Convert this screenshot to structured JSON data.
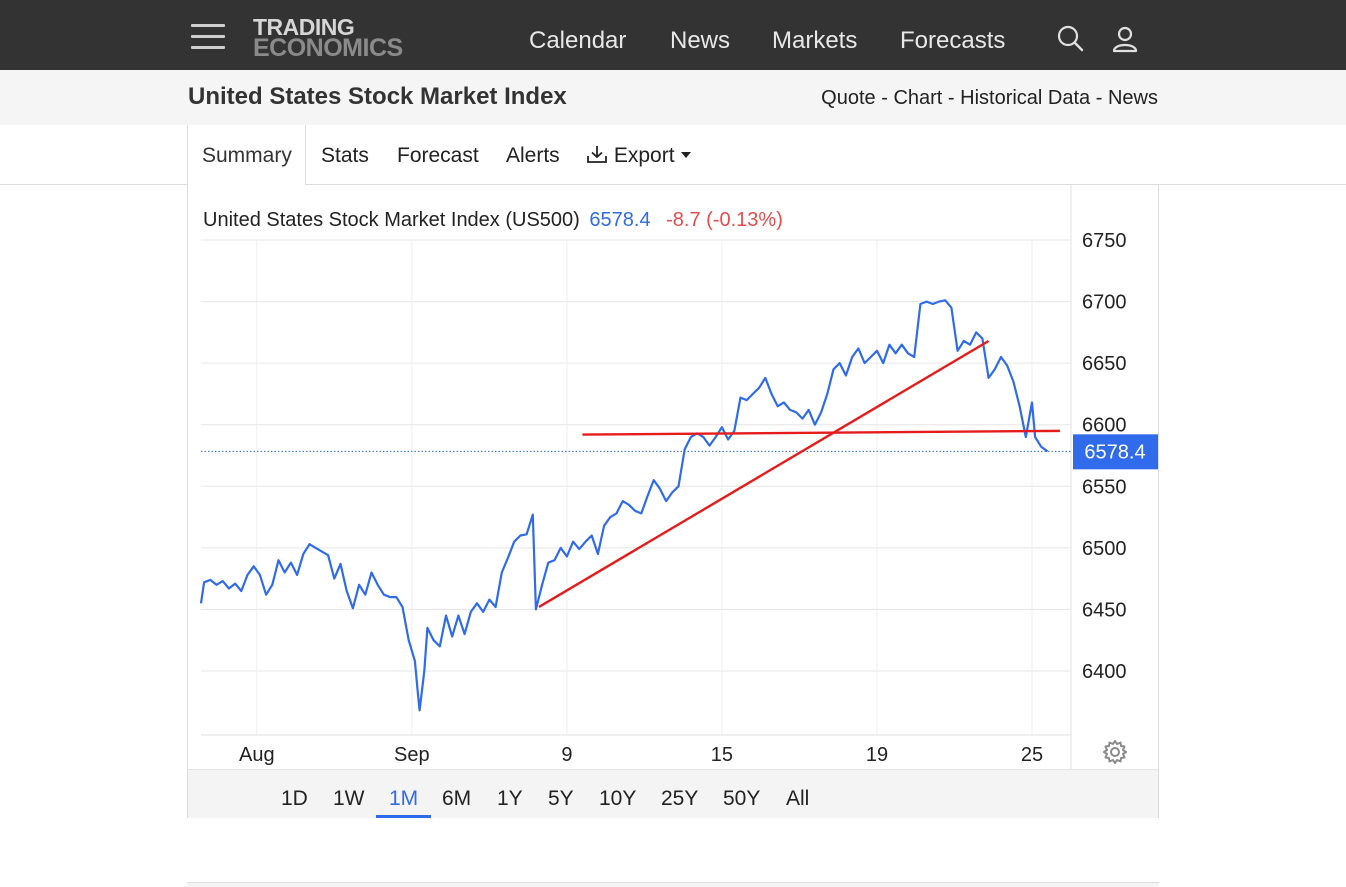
{
  "nav": {
    "logo_line1": "TRADING",
    "logo_line2": "ECONOMICS",
    "links": [
      "Calendar",
      "News",
      "Markets",
      "Forecasts"
    ],
    "search_icon": "search-icon",
    "user_icon": "user-icon",
    "menu_icon": "hamburger-menu-icon"
  },
  "title": "United States Stock Market Index",
  "breadcrumbs": {
    "quote": "Quote",
    "chart": "Chart",
    "historical": "Historical Data",
    "news": "News",
    "sep": "-"
  },
  "tabs": {
    "summary": "Summary",
    "stats": "Stats",
    "forecast": "Forecast",
    "alerts": "Alerts",
    "export": "Export"
  },
  "chart_header": {
    "name": "United States Stock Market Index (US500)",
    "price": "6578.4",
    "change": "-8.7 (-0.13%)"
  },
  "ranges": [
    "1D",
    "1W",
    "1M",
    "6M",
    "1Y",
    "5Y",
    "10Y",
    "25Y",
    "50Y",
    "All"
  ],
  "active_range": "1M",
  "colors": {
    "line": "#2f6bea",
    "trendline": "#e51c1c",
    "price_tag": "#2f6bea",
    "change": "#e74c4c",
    "nav_bg": "#333333"
  },
  "chart_data": {
    "type": "line",
    "title": "United States Stock Market Index (US500)",
    "ylim": [
      6350,
      6750
    ],
    "yticks": [
      6400,
      6450,
      6500,
      6550,
      6600,
      6650,
      6700,
      6750
    ],
    "xticks": [
      {
        "label": "Aug",
        "pos": 2.5
      },
      {
        "label": "Sep",
        "pos": 7.5
      },
      {
        "label": "9",
        "pos": 12.5
      },
      {
        "label": "15",
        "pos": 17.5
      },
      {
        "label": "19",
        "pos": 22.5
      },
      {
        "label": "25",
        "pos": 27.5
      }
    ],
    "xlim": [
      0.7,
      28.5
    ],
    "last_value": 6578.4,
    "last_label": "6578.4",
    "grid": true,
    "series": [
      {
        "values": [
          [
            0.7,
            6455
          ],
          [
            0.8,
            6472
          ],
          [
            1.0,
            6474
          ],
          [
            1.2,
            6470
          ],
          [
            1.4,
            6473
          ],
          [
            1.6,
            6467
          ],
          [
            1.8,
            6471
          ],
          [
            2.0,
            6465
          ],
          [
            2.2,
            6478
          ],
          [
            2.4,
            6485
          ],
          [
            2.6,
            6478
          ],
          [
            2.8,
            6462
          ],
          [
            3.0,
            6470
          ],
          [
            3.2,
            6490
          ],
          [
            3.4,
            6480
          ],
          [
            3.6,
            6488
          ],
          [
            3.8,
            6478
          ],
          [
            4.0,
            6495
          ],
          [
            4.2,
            6503
          ],
          [
            4.4,
            6500
          ],
          [
            4.6,
            6497
          ],
          [
            4.8,
            6494
          ],
          [
            5.0,
            6475
          ],
          [
            5.2,
            6487
          ],
          [
            5.4,
            6465
          ],
          [
            5.6,
            6451
          ],
          [
            5.8,
            6470
          ],
          [
            6.0,
            6462
          ],
          [
            6.2,
            6480
          ],
          [
            6.4,
            6470
          ],
          [
            6.6,
            6462
          ],
          [
            6.8,
            6460
          ],
          [
            7.0,
            6460
          ],
          [
            7.2,
            6452
          ],
          [
            7.4,
            6425
          ],
          [
            7.6,
            6408
          ],
          [
            7.7,
            6380
          ],
          [
            7.75,
            6368
          ],
          [
            7.9,
            6400
          ],
          [
            8.0,
            6435
          ],
          [
            8.2,
            6425
          ],
          [
            8.4,
            6420
          ],
          [
            8.6,
            6445
          ],
          [
            8.8,
            6428
          ],
          [
            9.0,
            6445
          ],
          [
            9.2,
            6430
          ],
          [
            9.4,
            6448
          ],
          [
            9.6,
            6455
          ],
          [
            9.8,
            6448
          ],
          [
            10.0,
            6458
          ],
          [
            10.2,
            6452
          ],
          [
            10.4,
            6480
          ],
          [
            10.6,
            6492
          ],
          [
            10.8,
            6505
          ],
          [
            11.0,
            6510
          ],
          [
            11.2,
            6511
          ],
          [
            11.4,
            6527
          ],
          [
            11.5,
            6450
          ],
          [
            11.7,
            6470
          ],
          [
            11.9,
            6488
          ],
          [
            12.1,
            6490
          ],
          [
            12.3,
            6500
          ],
          [
            12.5,
            6493
          ],
          [
            12.7,
            6505
          ],
          [
            12.9,
            6499
          ],
          [
            13.1,
            6505
          ],
          [
            13.3,
            6510
          ],
          [
            13.5,
            6495
          ],
          [
            13.7,
            6518
          ],
          [
            13.9,
            6525
          ],
          [
            14.1,
            6528
          ],
          [
            14.3,
            6538
          ],
          [
            14.5,
            6535
          ],
          [
            14.7,
            6530
          ],
          [
            14.9,
            6528
          ],
          [
            15.1,
            6542
          ],
          [
            15.3,
            6555
          ],
          [
            15.5,
            6548
          ],
          [
            15.7,
            6538
          ],
          [
            15.9,
            6545
          ],
          [
            16.1,
            6550
          ],
          [
            16.3,
            6580
          ],
          [
            16.5,
            6590
          ],
          [
            16.7,
            6593
          ],
          [
            16.9,
            6590
          ],
          [
            17.1,
            6583
          ],
          [
            17.3,
            6590
          ],
          [
            17.5,
            6598
          ],
          [
            17.7,
            6588
          ],
          [
            17.9,
            6595
          ],
          [
            18.1,
            6622
          ],
          [
            18.3,
            6620
          ],
          [
            18.5,
            6625
          ],
          [
            18.7,
            6630
          ],
          [
            18.9,
            6638
          ],
          [
            19.1,
            6625
          ],
          [
            19.3,
            6615
          ],
          [
            19.5,
            6618
          ],
          [
            19.7,
            6612
          ],
          [
            19.9,
            6610
          ],
          [
            20.1,
            6605
          ],
          [
            20.3,
            6612
          ],
          [
            20.5,
            6600
          ],
          [
            20.7,
            6610
          ],
          [
            20.9,
            6625
          ],
          [
            21.1,
            6645
          ],
          [
            21.3,
            6650
          ],
          [
            21.5,
            6640
          ],
          [
            21.7,
            6655
          ],
          [
            21.9,
            6662
          ],
          [
            22.1,
            6650
          ],
          [
            22.3,
            6655
          ],
          [
            22.5,
            6660
          ],
          [
            22.7,
            6650
          ],
          [
            22.9,
            6665
          ],
          [
            23.1,
            6658
          ],
          [
            23.3,
            6665
          ],
          [
            23.5,
            6658
          ],
          [
            23.7,
            6655
          ],
          [
            23.9,
            6698
          ],
          [
            24.1,
            6700
          ],
          [
            24.3,
            6698
          ],
          [
            24.5,
            6700
          ],
          [
            24.7,
            6701
          ],
          [
            24.9,
            6695
          ],
          [
            25.1,
            6660
          ],
          [
            25.3,
            6668
          ],
          [
            25.5,
            6665
          ],
          [
            25.7,
            6675
          ],
          [
            25.9,
            6670
          ],
          [
            26.1,
            6638
          ],
          [
            26.3,
            6645
          ],
          [
            26.5,
            6655
          ],
          [
            26.7,
            6648
          ],
          [
            26.9,
            6635
          ],
          [
            27.1,
            6615
          ],
          [
            27.3,
            6590
          ],
          [
            27.5,
            6618
          ],
          [
            27.6,
            6590
          ],
          [
            27.8,
            6582
          ],
          [
            28.0,
            6578.4
          ]
        ]
      }
    ],
    "trendlines": [
      {
        "from": [
          11.6,
          6452
        ],
        "to": [
          26.1,
          6668
        ]
      },
      {
        "from": [
          13.0,
          6592
        ],
        "to": [
          28.4,
          6595
        ]
      }
    ]
  }
}
